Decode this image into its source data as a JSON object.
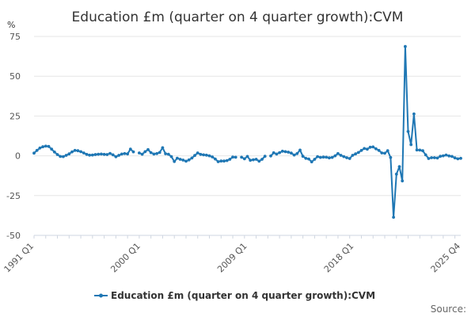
{
  "chart_data": {
    "type": "line",
    "title": "Education £m (quarter on 4 quarter growth):CVM",
    "y_unit": "%",
    "xlabel": "",
    "ylabel": "",
    "ylim": [
      -50,
      75
    ],
    "y_ticks": [
      75,
      50,
      25,
      0,
      -25,
      -50
    ],
    "x_tick_labels": [
      "1991 Q1",
      "2000 Q1",
      "2009 Q1",
      "2018 Q1",
      "2025 Q4"
    ],
    "grid": true,
    "legend_position": "bottom",
    "series": [
      {
        "name": "Education £m (quarter on 4 quarter growth):CVM",
        "color": "#1f77b4",
        "x_start": "1991 Q1",
        "x_end": "2025 Q4",
        "values": [
          1.7,
          3.4,
          4.9,
          5.7,
          6.1,
          5.9,
          4.2,
          2.4,
          0.8,
          -0.4,
          -0.5,
          0.3,
          1.2,
          2.5,
          3.4,
          3.2,
          2.6,
          1.8,
          0.9,
          0.4,
          0.5,
          0.8,
          1.0,
          1.1,
          0.9,
          0.8,
          1.5,
          0.6,
          -0.6,
          0.3,
          1.1,
          1.4,
          1.2,
          4.2,
          2.5,
          null,
          1.8,
          1.0,
          2.6,
          3.9,
          2.0,
          1.1,
          1.4,
          2.1,
          5.1,
          1.3,
          1.0,
          -0.5,
          -3.6,
          -1.5,
          -2.2,
          -2.7,
          -3.4,
          -2.6,
          -1.4,
          0.2,
          1.8,
          0.9,
          0.6,
          0.4,
          0.0,
          -0.7,
          -2.0,
          -3.7,
          -3.3,
          -3.3,
          -3.0,
          -2.2,
          -0.8,
          -0.9,
          null,
          -0.9,
          -1.9,
          -0.4,
          -2.8,
          -2.5,
          -2.2,
          -3.4,
          -2.2,
          -0.3,
          null,
          -0.1,
          1.9,
          1.1,
          2.0,
          2.9,
          2.6,
          2.3,
          1.7,
          0.5,
          1.4,
          3.6,
          -0.3,
          -1.6,
          -2.0,
          -3.8,
          -2.2,
          -0.5,
          -1.0,
          -0.8,
          -0.9,
          -1.3,
          -1.0,
          0.0,
          1.4,
          0.3,
          -0.5,
          -1.2,
          -1.7,
          0.3,
          1.2,
          2.1,
          3.4,
          4.6,
          4.2,
          5.4,
          5.6,
          4.4,
          3.4,
          1.8,
          1.6,
          3.2,
          -1.1,
          -38.6,
          -11.5,
          -6.8,
          -15.8,
          68.7,
          15.3,
          7.0,
          26.3,
          3.7,
          3.6,
          3.2,
          0.6,
          -1.7,
          -1.2,
          -1.2,
          -1.4,
          -0.3,
          0.0,
          0.5,
          -0.1,
          -0.4,
          -1.3,
          -1.9,
          -1.6
        ]
      }
    ]
  },
  "footer": {
    "source": "Source:"
  }
}
